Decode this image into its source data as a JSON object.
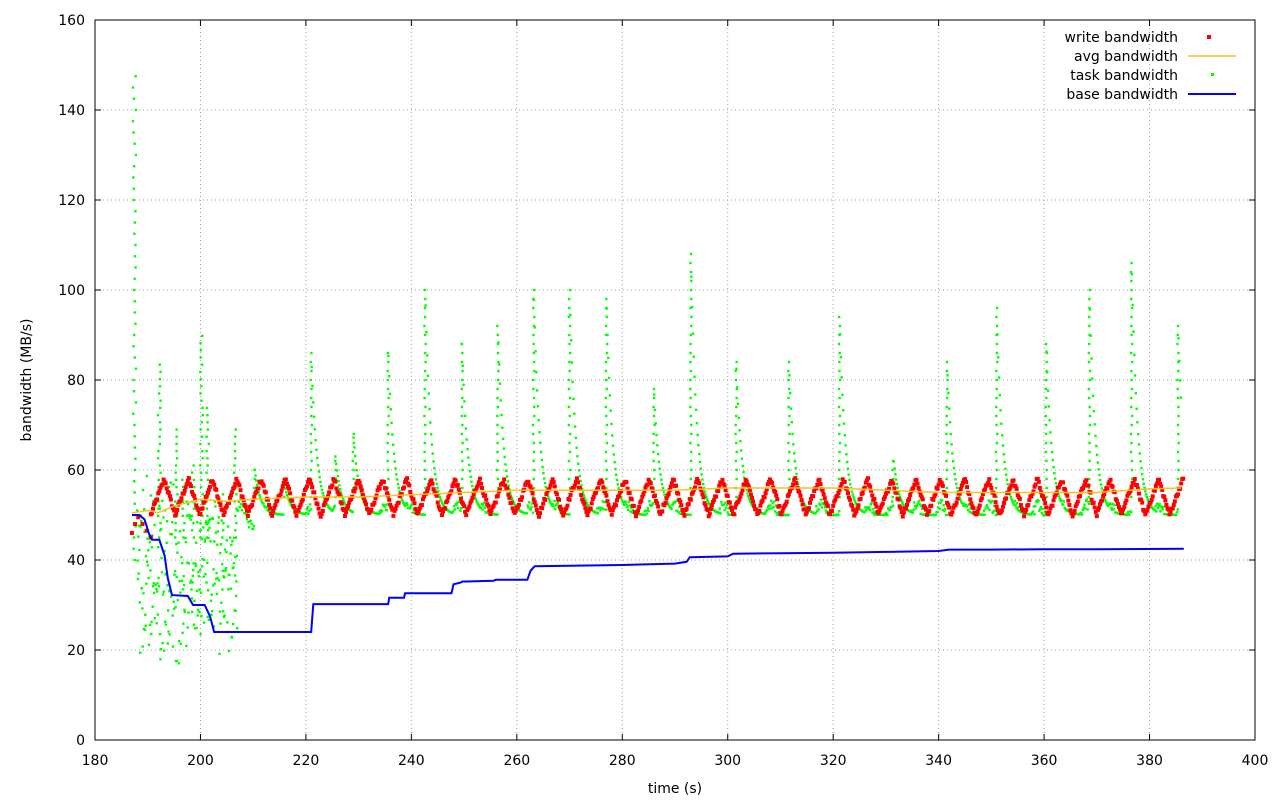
{
  "chart_data": {
    "type": "line",
    "xlabel": "time (s)",
    "ylabel": "bandwidth (MB/s)",
    "xlim": [
      180,
      400
    ],
    "ylim": [
      0,
      160
    ],
    "xticks": [
      180,
      200,
      220,
      240,
      260,
      280,
      300,
      320,
      340,
      360,
      380,
      400
    ],
    "yticks": [
      0,
      20,
      40,
      60,
      80,
      100,
      120,
      140,
      160
    ],
    "grid": true,
    "legend_position": "top-right",
    "colors": {
      "write": "#ff0000",
      "avg": "#ffc020",
      "task": "#00ff00",
      "base": "#0000ff"
    },
    "series": [
      {
        "name": "write bandwidth",
        "style": "points",
        "generator": "sawtooth",
        "x_start": 187,
        "x_end": 386.5,
        "period": 4.6,
        "low": 50,
        "high": 58,
        "start_values": [
          [
            187.0,
            46
          ],
          [
            187.6,
            48
          ],
          [
            188.2,
            49.5
          ],
          [
            189.0,
            48
          ],
          [
            189.8,
            46.5
          ],
          [
            190.6,
            45
          ]
        ]
      },
      {
        "name": "avg bandwidth",
        "style": "line",
        "x": [
          187,
          190,
          192,
          195,
          200,
          205,
          210,
          220,
          230,
          240,
          250,
          260,
          270,
          280,
          290,
          300,
          310,
          320,
          330,
          340,
          350,
          360,
          370,
          380,
          386
        ],
        "y": [
          50.5,
          51,
          50.5,
          52,
          53.5,
          53,
          53.5,
          54,
          54,
          54.5,
          55,
          55.5,
          55.5,
          55.5,
          55.5,
          56,
          56,
          56,
          55.5,
          55,
          55,
          55,
          55,
          55.8,
          56
        ]
      },
      {
        "name": "task bandwidth",
        "style": "points",
        "generator": "spikes",
        "x_start": 207,
        "x_end": 386,
        "baseline": 50,
        "early_burst": {
          "x_start": 188,
          "x_end": 207,
          "y_min": 8,
          "y_max": 90
        },
        "initial_spike": {
          "x": 187.5,
          "y": 148
        },
        "spikes": [
          [
            210.2,
            61
          ],
          [
            215.8,
            58
          ],
          [
            221,
            86
          ],
          [
            225.6,
            63
          ],
          [
            229,
            68
          ],
          [
            235.6,
            87
          ],
          [
            242.6,
            101
          ],
          [
            249.6,
            88
          ],
          [
            256.4,
            92
          ],
          [
            263.2,
            100
          ],
          [
            270,
            101
          ],
          [
            277,
            98
          ],
          [
            286,
            78
          ],
          [
            293,
            108
          ],
          [
            301.6,
            84
          ],
          [
            311.6,
            84
          ],
          [
            321.2,
            94
          ],
          [
            331.4,
            63
          ],
          [
            341.6,
            84
          ],
          [
            351,
            96
          ],
          [
            360.4,
            88
          ],
          [
            368.6,
            100
          ],
          [
            376.6,
            106
          ],
          [
            385.4,
            93
          ]
        ]
      },
      {
        "name": "base bandwidth",
        "style": "line",
        "x": [
          187,
          188.4,
          189.4,
          190.2,
          190.8,
          192.2,
          193.2,
          193.8,
          194.6,
          197.6,
          198.6,
          200.8,
          201.8,
          202.6,
          221,
          221.4,
          235.6,
          235.8,
          238.6,
          238.8,
          247.6,
          248,
          249.4,
          249.6,
          255.6,
          256,
          262,
          262.6,
          263.2,
          263.4,
          280,
          290,
          292.2,
          292.8,
          300,
          301,
          310,
          320,
          330,
          340,
          342,
          350,
          360,
          370,
          386.5
        ],
        "y": [
          50,
          50,
          49,
          46,
          44.5,
          44.5,
          41,
          36,
          32.2,
          32,
          30,
          30,
          27.5,
          24,
          24,
          30.2,
          30.2,
          31.6,
          31.6,
          32.6,
          32.6,
          34.6,
          35,
          35.2,
          35.4,
          35.6,
          35.6,
          37.6,
          38.4,
          38.6,
          38.9,
          39.2,
          39.6,
          40.6,
          40.8,
          41.4,
          41.5,
          41.6,
          41.8,
          42,
          42.3,
          42.3,
          42.4,
          42.4,
          42.5
        ]
      }
    ]
  }
}
